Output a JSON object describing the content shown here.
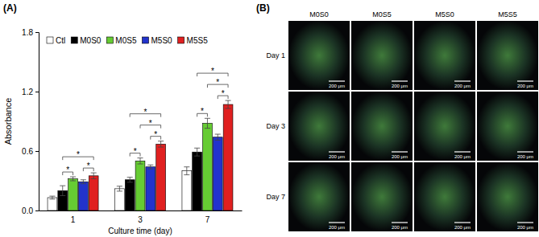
{
  "chart_data": {
    "type": "bar",
    "title": "(A)",
    "x_label": "Culture time (day)",
    "y_label": "Absorbance",
    "categories": [
      "1",
      "3",
      "7"
    ],
    "series": [
      {
        "name": "Ctl",
        "color": "#ffffff",
        "values": [
          0.13,
          0.22,
          0.4
        ],
        "errors": [
          0.015,
          0.025,
          0.04
        ]
      },
      {
        "name": "M0S0",
        "color": "#000000",
        "values": [
          0.2,
          0.31,
          0.59
        ],
        "errors": [
          0.05,
          0.025,
          0.04
        ]
      },
      {
        "name": "M0S5",
        "color": "#66cc33",
        "values": [
          0.32,
          0.5,
          0.88
        ],
        "errors": [
          0.02,
          0.03,
          0.05
        ]
      },
      {
        "name": "M5S0",
        "color": "#2233cc",
        "values": [
          0.29,
          0.44,
          0.74
        ],
        "errors": [
          0.02,
          0.02,
          0.03
        ]
      },
      {
        "name": "M5S5",
        "color": "#e02020",
        "values": [
          0.35,
          0.67,
          1.07
        ],
        "errors": [
          0.03,
          0.03,
          0.04
        ]
      }
    ],
    "significance": [
      {
        "category": "1",
        "from": "M0S0",
        "to": "M0S5",
        "label": "*"
      },
      {
        "category": "1",
        "from": "M5S0",
        "to": "M5S5",
        "label": "*"
      },
      {
        "category": "1",
        "from": "M0S0",
        "to": "M5S5",
        "label": "*"
      },
      {
        "category": "3",
        "from": "M5S0",
        "to": "M5S5",
        "label": "*"
      },
      {
        "category": "3",
        "from": "M0S0",
        "to": "M0S5",
        "label": "*"
      },
      {
        "category": "3",
        "from": "M0S5",
        "to": "M5S5",
        "label": "*"
      },
      {
        "category": "3",
        "from": "M0S0",
        "to": "M5S5",
        "label": "*"
      },
      {
        "category": "7",
        "from": "M5S0",
        "to": "M5S5",
        "label": "*"
      },
      {
        "category": "7",
        "from": "M0S0",
        "to": "M0S5",
        "label": "*"
      },
      {
        "category": "7",
        "from": "M0S5",
        "to": "M5S5",
        "label": "*"
      },
      {
        "category": "7",
        "from": "M0S0",
        "to": "M5S5",
        "label": "*"
      }
    ],
    "ylim": [
      0,
      1.8
    ],
    "yticks": [
      {
        "value": 0,
        "label": "0.0"
      },
      {
        "value": 0.6,
        "label": "0.6"
      },
      {
        "value": 1.2,
        "label": "1.2"
      },
      {
        "value": 1.8,
        "label": "1.8"
      }
    ],
    "legend": "top-left",
    "grid": false
  },
  "image_grid": {
    "label": "(B)",
    "columns": [
      "M0S0",
      "M0S5",
      "M5S0",
      "M5S5"
    ],
    "rows": [
      "Day 1",
      "Day 3",
      "Day 7"
    ],
    "scale_bar": "200 μm"
  }
}
